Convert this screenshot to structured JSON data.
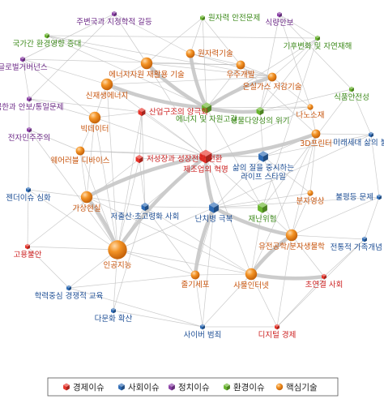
{
  "categories": {
    "economy": {
      "label": "경제이슈",
      "color": "#e8342a",
      "text_color": "#cc1f1f"
    },
    "society": {
      "label": "사회이슈",
      "color": "#2e6bb5",
      "text_color": "#1d4e95"
    },
    "politics": {
      "label": "정치이슈",
      "color": "#8a3ea6",
      "text_color": "#6d2a88"
    },
    "environment": {
      "label": "환경이슈",
      "color": "#69b52e",
      "text_color": "#3d8a1b"
    },
    "tech": {
      "label": "핵심기술",
      "color": "#f39325",
      "text_color": "#c8550e"
    }
  },
  "legend_order": [
    "economy",
    "society",
    "politics",
    "environment",
    "tech"
  ],
  "nodes": [
    {
      "id": "n1",
      "label": "원자력 안전문제",
      "cat": "environment",
      "weight": 1
    },
    {
      "id": "n2",
      "label": "주변국과 지정학적 갈등",
      "cat": "politics",
      "weight": 1
    },
    {
      "id": "n3",
      "label": "식량안보",
      "cat": "politics",
      "weight": 1
    },
    {
      "id": "n4",
      "label": "국가간 환경영향 증대",
      "cat": "environment",
      "weight": 1
    },
    {
      "id": "n5",
      "label": "기후변화 및 자연재해",
      "cat": "environment",
      "weight": 1
    },
    {
      "id": "n6",
      "label": "글로벌거버넌스",
      "cat": "politics",
      "weight": 1
    },
    {
      "id": "n7",
      "label": "원자력기술",
      "cat": "tech",
      "weight": 2
    },
    {
      "id": "n8",
      "label": "에너지자원 재활용 기술",
      "cat": "tech",
      "weight": 3
    },
    {
      "id": "n9",
      "label": "우주개발",
      "cat": "tech",
      "weight": 2
    },
    {
      "id": "n10",
      "label": "신재생에너지",
      "cat": "tech",
      "weight": 3
    },
    {
      "id": "n11",
      "label": "온실가스 저감기술",
      "cat": "tech",
      "weight": 2
    },
    {
      "id": "n12",
      "label": "북한과 안보/통일문제",
      "cat": "politics",
      "weight": 1
    },
    {
      "id": "n13",
      "label": "식품안전성",
      "cat": "environment",
      "weight": 1
    },
    {
      "id": "n14",
      "label": "에너지 및 자원고갈",
      "cat": "environment",
      "weight": 3
    },
    {
      "id": "n15",
      "label": "생물다양성의 위기",
      "cat": "environment",
      "weight": 2
    },
    {
      "id": "n16",
      "label": "나노소재",
      "cat": "tech",
      "weight": 1
    },
    {
      "id": "n17",
      "label": "빅데이터",
      "cat": "tech",
      "weight": 3
    },
    {
      "id": "n18",
      "label": "산업구조의 양극화",
      "cat": "economy",
      "weight": 2
    },
    {
      "id": "n19",
      "label": "전자민주주의",
      "cat": "politics",
      "weight": 1
    },
    {
      "id": "n20",
      "label": "3D프린터",
      "cat": "tech",
      "weight": 2
    },
    {
      "id": "n21",
      "label": "미래세대 삶의 불안정성",
      "cat": "society",
      "weight": 1
    },
    {
      "id": "n22",
      "label": "웨어러블 디바이스",
      "cat": "tech",
      "weight": 2
    },
    {
      "id": "n23",
      "label": "저성장과 성장전략 전환",
      "cat": "economy",
      "weight": 2
    },
    {
      "id": "n24",
      "label": "제조업의 혁명",
      "cat": "economy",
      "weight": 4
    },
    {
      "id": "n25",
      "label": "삶의 질을 중시하는 라이프 스타일",
      "cat": "society",
      "weight": 3
    },
    {
      "id": "n26",
      "label": "젠더이슈 심화",
      "cat": "society",
      "weight": 1
    },
    {
      "id": "n27",
      "label": "분자영상",
      "cat": "tech",
      "weight": 1
    },
    {
      "id": "n28",
      "label": "불평등 문제",
      "cat": "society",
      "weight": 1
    },
    {
      "id": "n29",
      "label": "가상현실",
      "cat": "tech",
      "weight": 3
    },
    {
      "id": "n30",
      "label": "저출산·초고령화 사회",
      "cat": "society",
      "weight": 2
    },
    {
      "id": "n31",
      "label": "난치병 극복",
      "cat": "society",
      "weight": 3
    },
    {
      "id": "n32",
      "label": "재난위험",
      "cat": "environment",
      "weight": 3
    },
    {
      "id": "n33",
      "label": "유전공학/분자생물학",
      "cat": "tech",
      "weight": 3
    },
    {
      "id": "n34",
      "label": "고용불안",
      "cat": "economy",
      "weight": 1
    },
    {
      "id": "n35",
      "label": "인공지능",
      "cat": "tech",
      "weight": 5
    },
    {
      "id": "n36",
      "label": "전통적 가족개념 변화",
      "cat": "society",
      "weight": 1
    },
    {
      "id": "n37",
      "label": "줄기세포",
      "cat": "tech",
      "weight": 2
    },
    {
      "id": "n38",
      "label": "사물인터넷",
      "cat": "tech",
      "weight": 3
    },
    {
      "id": "n39",
      "label": "초연결 사회",
      "cat": "economy",
      "weight": 1
    },
    {
      "id": "n40",
      "label": "학력중심 경쟁적 교육",
      "cat": "society",
      "weight": 1
    },
    {
      "id": "n41",
      "label": "다문화 확산",
      "cat": "society",
      "weight": 1
    },
    {
      "id": "n42",
      "label": "사이버 범죄",
      "cat": "society",
      "weight": 1
    },
    {
      "id": "n43",
      "label": "디지털 경제",
      "cat": "economy",
      "weight": 1
    }
  ],
  "strong_links": [
    [
      "n8",
      "n14"
    ],
    [
      "n10",
      "n14"
    ],
    [
      "n24",
      "n20"
    ],
    [
      "n24",
      "n35"
    ],
    [
      "n24",
      "n29"
    ],
    [
      "n31",
      "n33"
    ],
    [
      "n31",
      "n37"
    ],
    [
      "n33",
      "n38"
    ],
    [
      "n24",
      "n31"
    ],
    [
      "n11",
      "n14"
    ],
    [
      "n38",
      "n39"
    ],
    [
      "n35",
      "n29"
    ],
    [
      "n14",
      "n15"
    ],
    [
      "n7",
      "n14"
    ]
  ],
  "links": [
    [
      "n1",
      "n7"
    ],
    [
      "n1",
      "n8"
    ],
    [
      "n1",
      "n14"
    ],
    [
      "n1",
      "n9"
    ],
    [
      "n2",
      "n6"
    ],
    [
      "n2",
      "n12"
    ],
    [
      "n2",
      "n8"
    ],
    [
      "n3",
      "n5"
    ],
    [
      "n3",
      "n13"
    ],
    [
      "n3",
      "n15"
    ],
    [
      "n4",
      "n5"
    ],
    [
      "n4",
      "n14"
    ],
    [
      "n4",
      "n11"
    ],
    [
      "n5",
      "n11"
    ],
    [
      "n5",
      "n15"
    ],
    [
      "n5",
      "n32"
    ],
    [
      "n5",
      "n14"
    ],
    [
      "n6",
      "n12"
    ],
    [
      "n6",
      "n10"
    ],
    [
      "n6",
      "n17"
    ],
    [
      "n7",
      "n9"
    ],
    [
      "n7",
      "n11"
    ],
    [
      "n8",
      "n10"
    ],
    [
      "n8",
      "n11"
    ],
    [
      "n8",
      "n24"
    ],
    [
      "n9",
      "n20"
    ],
    [
      "n9",
      "n14"
    ],
    [
      "n10",
      "n17"
    ],
    [
      "n10",
      "n24"
    ],
    [
      "n10",
      "n11"
    ],
    [
      "n11",
      "n16"
    ],
    [
      "n11",
      "n15"
    ],
    [
      "n12",
      "n17"
    ],
    [
      "n12",
      "n19"
    ],
    [
      "n13",
      "n15"
    ],
    [
      "n13",
      "n32"
    ],
    [
      "n14",
      "n24"
    ],
    [
      "n14",
      "n16"
    ],
    [
      "n15",
      "n16"
    ],
    [
      "n15",
      "n25"
    ],
    [
      "n16",
      "n20"
    ],
    [
      "n16",
      "n24"
    ],
    [
      "n17",
      "n18"
    ],
    [
      "n17",
      "n35"
    ],
    [
      "n17",
      "n22"
    ],
    [
      "n17",
      "n24"
    ],
    [
      "n18",
      "n23"
    ],
    [
      "n18",
      "n24"
    ],
    [
      "n18",
      "n30"
    ],
    [
      "n19",
      "n22"
    ],
    [
      "n19",
      "n35"
    ],
    [
      "n20",
      "n25"
    ],
    [
      "n20",
      "n27"
    ],
    [
      "n20",
      "n21"
    ],
    [
      "n20",
      "n38"
    ],
    [
      "n21",
      "n25"
    ],
    [
      "n21",
      "n28"
    ],
    [
      "n22",
      "n29"
    ],
    [
      "n22",
      "n24"
    ],
    [
      "n22",
      "n25"
    ],
    [
      "n23",
      "n24"
    ],
    [
      "n23",
      "n34"
    ],
    [
      "n23",
      "n30"
    ],
    [
      "n24",
      "n25"
    ],
    [
      "n24",
      "n30"
    ],
    [
      "n24",
      "n38"
    ],
    [
      "n25",
      "n31"
    ],
    [
      "n25",
      "n27"
    ],
    [
      "n26",
      "n29"
    ],
    [
      "n26",
      "n35"
    ],
    [
      "n27",
      "n33"
    ],
    [
      "n27",
      "n31"
    ],
    [
      "n28",
      "n33"
    ],
    [
      "n28",
      "n36"
    ],
    [
      "n29",
      "n30"
    ],
    [
      "n29",
      "n35"
    ],
    [
      "n30",
      "n31"
    ],
    [
      "n30",
      "n35"
    ],
    [
      "n30",
      "n37"
    ],
    [
      "n31",
      "n32"
    ],
    [
      "n31",
      "n35"
    ],
    [
      "n32",
      "n33"
    ],
    [
      "n32",
      "n38"
    ],
    [
      "n33",
      "n36"
    ],
    [
      "n33",
      "n39"
    ],
    [
      "n34",
      "n35"
    ],
    [
      "n35",
      "n37"
    ],
    [
      "n35",
      "n40"
    ],
    [
      "n35",
      "n41"
    ],
    [
      "n35",
      "n38"
    ],
    [
      "n36",
      "n39"
    ],
    [
      "n37",
      "n38"
    ],
    [
      "n37",
      "n42"
    ],
    [
      "n38",
      "n42"
    ],
    [
      "n38",
      "n43"
    ],
    [
      "n39",
      "n43"
    ],
    [
      "n40",
      "n37"
    ],
    [
      "n41",
      "n42"
    ],
    [
      "n42",
      "n43"
    ],
    [
      "n26",
      "n34"
    ],
    [
      "n19",
      "n26"
    ],
    [
      "n12",
      "n18"
    ],
    [
      "n6",
      "n9"
    ],
    [
      "n3",
      "n16"
    ],
    [
      "n13",
      "n21"
    ],
    [
      "n28",
      "n31"
    ],
    [
      "n36",
      "n43"
    ],
    [
      "n40",
      "n42"
    ],
    [
      "n34",
      "n40"
    ],
    [
      "n2",
      "n7"
    ],
    [
      "n9",
      "n11"
    ],
    [
      "n4",
      "n8"
    ],
    [
      "n22",
      "n35"
    ],
    [
      "n17",
      "n29"
    ],
    [
      "n24",
      "n32"
    ],
    [
      "n25",
      "n33"
    ],
    [
      "n30",
      "n38"
    ],
    [
      "n37",
      "n31"
    ],
    [
      "n18",
      "n35"
    ],
    [
      "n23",
      "n35"
    ],
    [
      "n14",
      "n32"
    ],
    [
      "n20",
      "n33"
    ],
    [
      "n8",
      "n9"
    ],
    [
      "n10",
      "n35"
    ],
    [
      "n41",
      "n30"
    ],
    [
      "n42",
      "n31"
    ],
    [
      "n43",
      "n33"
    ],
    [
      "n29",
      "n38"
    ],
    [
      "n21",
      "n31"
    ]
  ]
}
